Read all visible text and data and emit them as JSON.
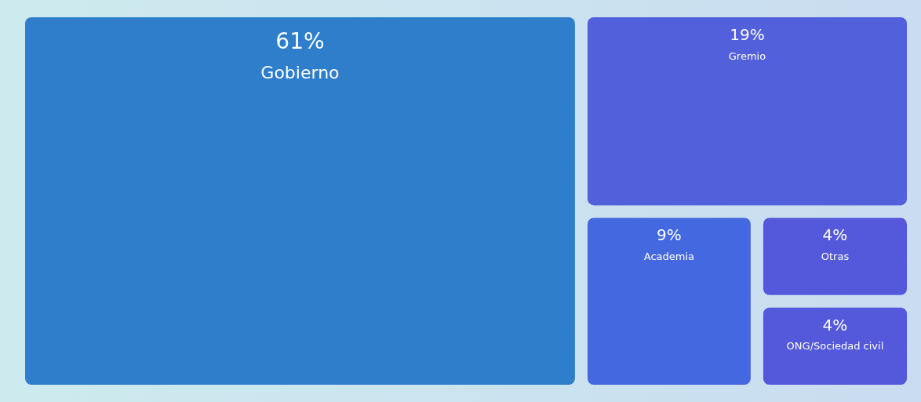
{
  "chart_data": {
    "type": "other",
    "categories": [
      "Gobierno",
      "Gremio",
      "Academia",
      "ONG/Sociedad civil",
      "Otras"
    ],
    "values": [
      61,
      19,
      9,
      4,
      4
    ],
    "value_labels": [
      "61%",
      "19%",
      "9%",
      "4%",
      "4%"
    ],
    "colors": [
      "#2f7ecb",
      "#5260dc",
      "#4468e0",
      "#5459dc",
      "#5459dc"
    ]
  }
}
